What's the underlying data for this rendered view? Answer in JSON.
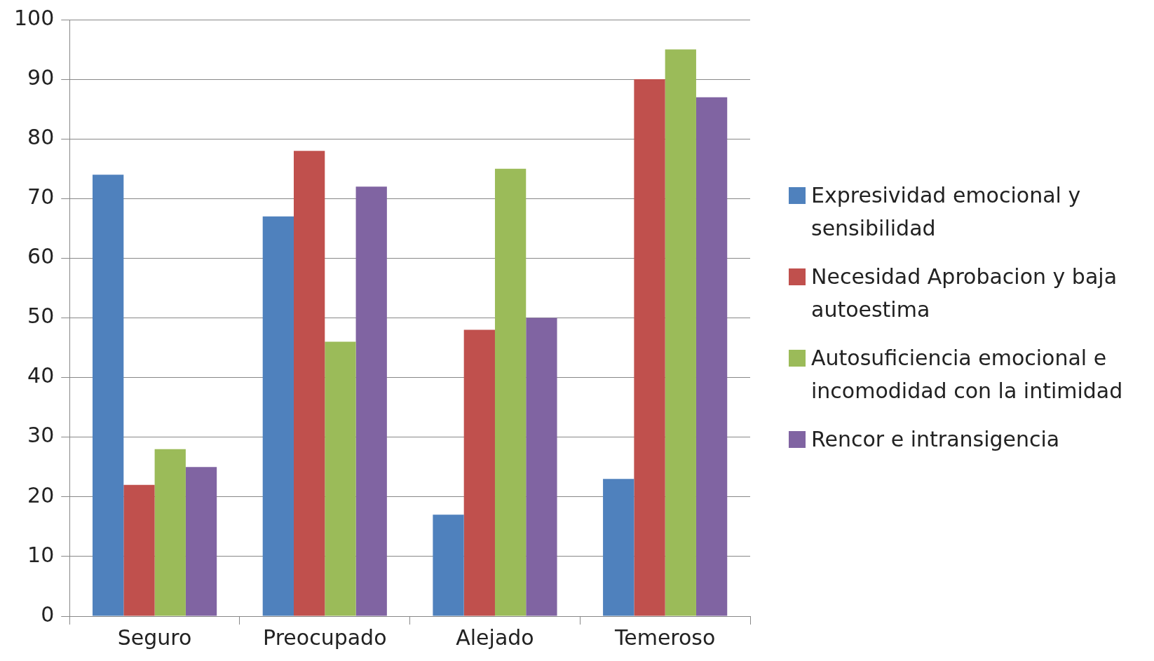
{
  "chart_data": {
    "type": "bar",
    "categories": [
      "Seguro",
      "Preocupado",
      "Alejado",
      "Temeroso"
    ],
    "series": [
      {
        "name": "Expresividad emocional y sensibilidad",
        "color": "#4f81bd",
        "values": [
          74,
          67,
          17,
          23
        ]
      },
      {
        "name": "Necesidad Aprobacion y baja autoestima",
        "color": "#c0504d",
        "values": [
          22,
          78,
          48,
          90
        ]
      },
      {
        "name": "Autosuficiencia emocional e incomodidad con la intimidad",
        "color": "#9bbb59",
        "values": [
          28,
          46,
          75,
          95
        ]
      },
      {
        "name": "Rencor e intransigencia",
        "color": "#8064a2",
        "values": [
          25,
          72,
          50,
          87
        ]
      }
    ],
    "ylim": [
      0,
      100
    ],
    "yticks": [
      0,
      10,
      20,
      30,
      40,
      50,
      60,
      70,
      80,
      90,
      100
    ],
    "grid": "y",
    "legend": "right"
  }
}
